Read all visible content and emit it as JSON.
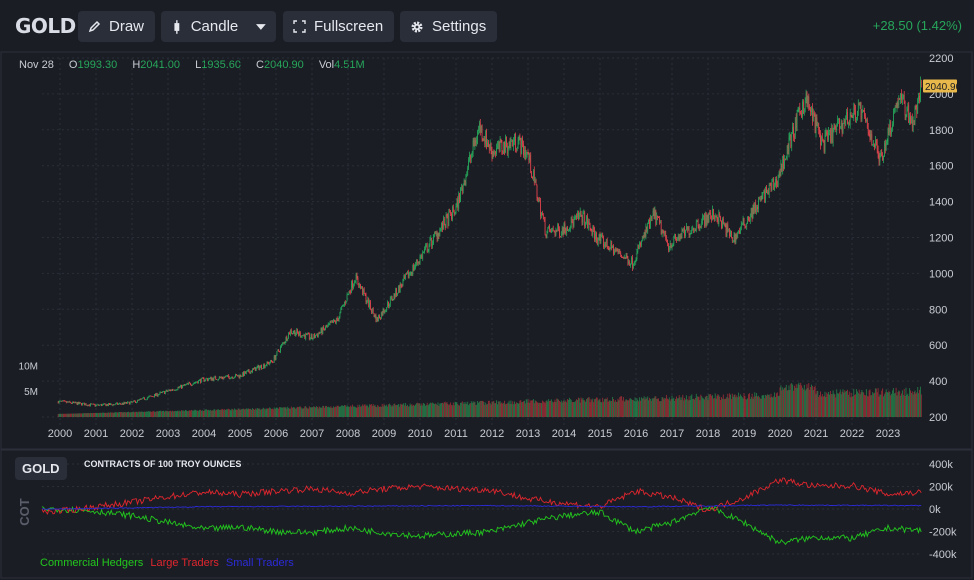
{
  "header": {
    "symbol": "GOLD",
    "change": "+28.50 (1.42%)",
    "buttons": [
      {
        "label": "Draw",
        "icon": "pencil-icon"
      },
      {
        "label": "Candle",
        "icon": "candle-icon",
        "dropdown_icon": "caret-down-icon"
      },
      {
        "label": "Fullscreen",
        "icon": "fullscreen-icon"
      },
      {
        "label": "Settings",
        "icon": "gear-icon"
      }
    ]
  },
  "ohlc": {
    "date": "Nov 28",
    "o_label": "O",
    "o": "1993.30",
    "h_label": "H",
    "h": "2041.00",
    "l_label": "L",
    "l": "1935.60",
    "c_label": "C",
    "c": "2040.90",
    "vol_label": "Vol",
    "vol": "4.51M"
  },
  "colors": {
    "up": "#26a65b",
    "down": "#e0434d",
    "volume_up": "#26804a",
    "volume_down": "#9c2f36",
    "commercial": "#22c81e",
    "large": "#e0262e",
    "small": "#2b2bd8",
    "last_price_bg": "#e8b84a"
  },
  "chart_data": [
    {
      "type": "candlestick",
      "title": "GOLD",
      "last_price": "2040.90",
      "x_tick_labels": [
        "2000",
        "2001",
        "2002",
        "2003",
        "2004",
        "2005",
        "2006",
        "2007",
        "2008",
        "2009",
        "2010",
        "2011",
        "2012",
        "2013",
        "2014",
        "2015",
        "2016",
        "2017",
        "2018",
        "2019",
        "2020",
        "2021",
        "2022",
        "2023"
      ],
      "y_tick_labels": [
        "200",
        "400",
        "600",
        "800",
        "1000",
        "1200",
        "1400",
        "1600",
        "1800",
        "2000",
        "2200"
      ],
      "y_range": [
        200,
        2200
      ],
      "volume_tick_labels": [
        "5M",
        "10M"
      ],
      "volume_range_m": [
        0,
        12
      ],
      "price_path": [
        {
          "x": 2000.0,
          "price": 285
        },
        {
          "x": 2001.0,
          "price": 265
        },
        {
          "x": 2001.5,
          "price": 270
        },
        {
          "x": 2002.0,
          "price": 280
        },
        {
          "x": 2003.0,
          "price": 345
        },
        {
          "x": 2004.0,
          "price": 410
        },
        {
          "x": 2005.0,
          "price": 430
        },
        {
          "x": 2005.9,
          "price": 510
        },
        {
          "x": 2006.4,
          "price": 680
        },
        {
          "x": 2007.0,
          "price": 640
        },
        {
          "x": 2007.7,
          "price": 740
        },
        {
          "x": 2008.2,
          "price": 980
        },
        {
          "x": 2008.8,
          "price": 740
        },
        {
          "x": 2009.5,
          "price": 940
        },
        {
          "x": 2010.5,
          "price": 1230
        },
        {
          "x": 2011.0,
          "price": 1360
        },
        {
          "x": 2011.65,
          "price": 1820
        },
        {
          "x": 2012.0,
          "price": 1680
        },
        {
          "x": 2012.7,
          "price": 1740
        },
        {
          "x": 2013.0,
          "price": 1660
        },
        {
          "x": 2013.5,
          "price": 1230
        },
        {
          "x": 2013.9,
          "price": 1240
        },
        {
          "x": 2014.5,
          "price": 1320
        },
        {
          "x": 2014.9,
          "price": 1200
        },
        {
          "x": 2015.9,
          "price": 1060
        },
        {
          "x": 2016.5,
          "price": 1330
        },
        {
          "x": 2016.9,
          "price": 1160
        },
        {
          "x": 2017.8,
          "price": 1290
        },
        {
          "x": 2018.2,
          "price": 1330
        },
        {
          "x": 2018.7,
          "price": 1190
        },
        {
          "x": 2019.5,
          "price": 1420
        },
        {
          "x": 2019.9,
          "price": 1510
        },
        {
          "x": 2020.7,
          "price": 1980
        },
        {
          "x": 2021.2,
          "price": 1720
        },
        {
          "x": 2021.6,
          "price": 1810
        },
        {
          "x": 2022.2,
          "price": 1920
        },
        {
          "x": 2022.8,
          "price": 1640
        },
        {
          "x": 2023.3,
          "price": 1990
        },
        {
          "x": 2023.7,
          "price": 1840
        },
        {
          "x": 2023.92,
          "price": 2040
        }
      ]
    },
    {
      "type": "line",
      "title": "CONTRACTS OF 100 TROY OUNCES",
      "panel_label": "GOLD",
      "ylabel": "COT",
      "y_tick_labels": [
        "400k",
        "200k",
        "0k",
        "-200k",
        "-400k"
      ],
      "y_range": [
        -400000,
        400000
      ],
      "series": [
        {
          "name": "Commercial Hedgers",
          "values": [
            [
              2000,
              0
            ],
            [
              2001,
              -20000
            ],
            [
              2002,
              -60000
            ],
            [
              2003,
              -120000
            ],
            [
              2004,
              -180000
            ],
            [
              2005,
              -160000
            ],
            [
              2006,
              -200000
            ],
            [
              2007,
              -210000
            ],
            [
              2008,
              -170000
            ],
            [
              2009,
              -210000
            ],
            [
              2010,
              -240000
            ],
            [
              2011,
              -220000
            ],
            [
              2012,
              -200000
            ],
            [
              2013,
              -120000
            ],
            [
              2014,
              -60000
            ],
            [
              2015,
              -30000
            ],
            [
              2016,
              -200000
            ],
            [
              2017,
              -120000
            ],
            [
              2018,
              20000
            ],
            [
              2019,
              -120000
            ],
            [
              2020,
              -300000
            ],
            [
              2021,
              -250000
            ],
            [
              2022,
              -260000
            ],
            [
              2023,
              -170000
            ],
            [
              2023.9,
              -190000
            ]
          ]
        },
        {
          "name": "Large Traders",
          "values": [
            [
              2000,
              -20000
            ],
            [
              2001,
              20000
            ],
            [
              2002,
              60000
            ],
            [
              2003,
              110000
            ],
            [
              2004,
              150000
            ],
            [
              2005,
              130000
            ],
            [
              2006,
              160000
            ],
            [
              2007,
              180000
            ],
            [
              2008,
              140000
            ],
            [
              2009,
              180000
            ],
            [
              2010,
              200000
            ],
            [
              2011,
              180000
            ],
            [
              2012,
              170000
            ],
            [
              2013,
              90000
            ],
            [
              2014,
              50000
            ],
            [
              2015,
              20000
            ],
            [
              2016,
              160000
            ],
            [
              2017,
              100000
            ],
            [
              2018,
              -10000
            ],
            [
              2019,
              100000
            ],
            [
              2020,
              260000
            ],
            [
              2021,
              200000
            ],
            [
              2022,
              210000
            ],
            [
              2023,
              130000
            ],
            [
              2023.9,
              150000
            ]
          ]
        },
        {
          "name": "Small Traders",
          "values": [
            [
              2000,
              0
            ],
            [
              2004,
              20000
            ],
            [
              2008,
              25000
            ],
            [
              2012,
              30000
            ],
            [
              2016,
              20000
            ],
            [
              2020,
              35000
            ],
            [
              2023.9,
              30000
            ]
          ]
        }
      ]
    }
  ]
}
